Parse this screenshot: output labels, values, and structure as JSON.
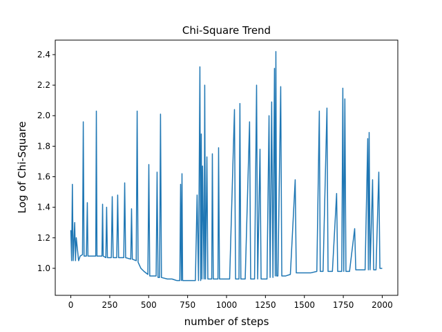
{
  "chart_data": {
    "type": "line",
    "title": "Chi-Square Trend",
    "x_label": "number of steps",
    "y_label": "Log of Chi-Square",
    "x": [
      0,
      5,
      10,
      15,
      25,
      30,
      35,
      50,
      60,
      75,
      80,
      85,
      100,
      106,
      110,
      140,
      160,
      164,
      168,
      200,
      204,
      208,
      225,
      230,
      235,
      260,
      266,
      272,
      295,
      301,
      307,
      340,
      346,
      352,
      385,
      390,
      395,
      420,
      426,
      432,
      450,
      470,
      495,
      501,
      507,
      530,
      548,
      554,
      560,
      570,
      576,
      582,
      620,
      650,
      680,
      700,
      705,
      710,
      714,
      718,
      760,
      800,
      811,
      820,
      829,
      834,
      838,
      842,
      846,
      856,
      860,
      865,
      874,
      880,
      905,
      909,
      915,
      945,
      949,
      955,
      990,
      1020,
      1051,
      1058,
      1080,
      1086,
      1092,
      1120,
      1148,
      1155,
      1180,
      1193,
      1200,
      1215,
      1222,
      1260,
      1273,
      1280,
      1290,
      1298,
      1308,
      1313,
      1317,
      1322,
      1330,
      1348,
      1355,
      1380,
      1410,
      1441,
      1448,
      1470,
      1500,
      1540,
      1580,
      1596,
      1602,
      1620,
      1645,
      1652,
      1680,
      1707,
      1714,
      1740,
      1747,
      1753,
      1760,
      1767,
      1790,
      1823,
      1830,
      1860,
      1890,
      1907,
      1911,
      1916,
      1922,
      1938,
      1945,
      1960,
      1978,
      1985,
      2000
    ],
    "series": [
      {
        "name": "Log of Chi-Square",
        "color": "#1f77b4",
        "values": [
          1.25,
          1.05,
          1.55,
          1.05,
          1.3,
          1.05,
          1.2,
          1.05,
          1.08,
          1.09,
          1.96,
          1.08,
          1.08,
          1.43,
          1.08,
          1.08,
          1.08,
          2.03,
          1.08,
          1.08,
          1.42,
          1.08,
          1.07,
          1.4,
          1.07,
          1.07,
          1.47,
          1.07,
          1.07,
          1.48,
          1.07,
          1.07,
          1.56,
          1.07,
          1.06,
          1.39,
          1.06,
          1.05,
          2.03,
          1.04,
          1.0,
          0.98,
          0.96,
          1.68,
          0.95,
          0.95,
          0.95,
          1.63,
          0.94,
          0.94,
          2.01,
          0.94,
          0.93,
          0.93,
          0.92,
          0.92,
          1.55,
          0.92,
          1.62,
          0.92,
          0.92,
          0.92,
          1.48,
          0.92,
          2.32,
          0.92,
          1.88,
          0.93,
          1.67,
          0.93,
          2.2,
          0.93,
          1.73,
          0.93,
          0.93,
          1.75,
          0.93,
          0.93,
          1.79,
          0.93,
          0.93,
          0.93,
          2.04,
          0.93,
          0.93,
          2.08,
          0.93,
          0.93,
          1.96,
          0.93,
          0.93,
          2.2,
          0.93,
          1.78,
          0.93,
          0.93,
          2.0,
          0.94,
          2.09,
          0.94,
          2.31,
          0.95,
          2.42,
          0.95,
          0.95,
          2.19,
          0.95,
          0.95,
          0.96,
          1.58,
          0.97,
          0.97,
          0.97,
          0.97,
          0.98,
          2.03,
          0.98,
          0.98,
          2.05,
          0.98,
          0.98,
          1.49,
          0.98,
          0.98,
          2.18,
          0.98,
          2.11,
          0.98,
          0.98,
          1.26,
          0.99,
          0.99,
          0.99,
          1.85,
          0.99,
          1.89,
          0.99,
          1.58,
          0.99,
          0.99,
          1.63,
          1.0,
          1.0
        ]
      }
    ],
    "xlim": [
      -100,
      2100
    ],
    "ylim": [
      0.823,
      2.495
    ],
    "xticks": [
      0,
      250,
      500,
      750,
      1000,
      1250,
      1500,
      1750,
      2000
    ],
    "yticks": [
      {
        "value": 1.0,
        "label": "1.0"
      },
      {
        "value": 1.2,
        "label": "1.2"
      },
      {
        "value": 1.4,
        "label": "1.4"
      },
      {
        "value": 1.6,
        "label": "1.6"
      },
      {
        "value": 1.8,
        "label": "1.8"
      },
      {
        "value": 2.0,
        "label": "2.0"
      },
      {
        "value": 2.2,
        "label": "2.2"
      },
      {
        "value": 2.4,
        "label": "2.4"
      }
    ],
    "grid": false
  }
}
